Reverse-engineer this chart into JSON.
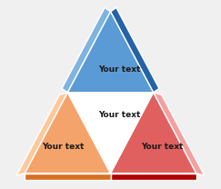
{
  "background_color": "#f0f0f0",
  "text_label": "Your text",
  "text_color": "#1a1a1a",
  "text_fontsize": 6.5,
  "top_front": "#5b9bd5",
  "top_left_face": "#7fb3e0",
  "top_right_face": "#2563a8",
  "bl_front": "#f4a46a",
  "bl_left_face": "#ffc89a",
  "bl_bottom_face": "#d96f20",
  "br_front": "#e06060",
  "br_right_face": "#f4a0a0",
  "br_bottom_face": "#b00000",
  "center_color": "#ffffff",
  "edge_color": "#ffffff",
  "edge_lw": 1.0
}
